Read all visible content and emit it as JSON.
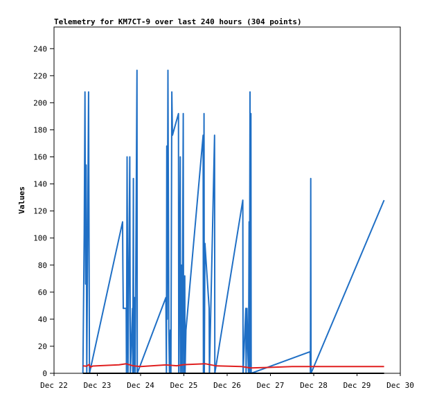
{
  "chart_data": {
    "type": "line",
    "title": "Telemetry for KM7CT-9 over last 240 hours (304 points)",
    "xlabel": "",
    "ylabel": "Values",
    "ylim": [
      0,
      256
    ],
    "xlim": [
      "Dec 22",
      "Dec 30"
    ],
    "x_ticks": [
      "Dec 22",
      "Dec 23",
      "Dec 24",
      "Dec 25",
      "Dec 26",
      "Dec 27",
      "Dec 28",
      "Dec 29",
      "Dec 30"
    ],
    "y_ticks": [
      0,
      20,
      40,
      60,
      80,
      100,
      120,
      140,
      160,
      180,
      200,
      220,
      240
    ],
    "grid": false,
    "legend": "none",
    "colors": {
      "blue": "#1f6fc5",
      "red": "#e01f1f",
      "black": "#000000"
    },
    "series": [
      {
        "color": "blue",
        "points": [
          [
            "Dec 22 16:00",
            0
          ],
          [
            "Dec 22 16:45",
            104
          ],
          [
            "Dec 22 17:10",
            208
          ],
          [
            "Dec 22 17:30",
            66
          ],
          [
            "Dec 22 17:50",
            154
          ],
          [
            "Dec 22 18:10",
            0
          ],
          [
            "Dec 22 19:10",
            208
          ],
          [
            "Dec 22 19:40",
            0
          ],
          [
            "Dec 23 14:00",
            112
          ],
          [
            "Dec 23 14:10",
            80
          ],
          [
            "Dec 23 14:25",
            48
          ],
          [
            "Dec 23 16:00",
            48
          ],
          [
            "Dec 23 16:10",
            0
          ],
          [
            "Dec 23 16:30",
            160
          ],
          [
            "Dec 23 17:00",
            0
          ],
          [
            "Dec 23 18:00",
            160
          ],
          [
            "Dec 23 18:20",
            0
          ],
          [
            "Dec 23 19:30",
            48
          ],
          [
            "Dec 23 19:40",
            0
          ],
          [
            "Dec 23 20:00",
            144
          ],
          [
            "Dec 23 20:10",
            0
          ],
          [
            "Dec 23 20:40",
            56
          ],
          [
            "Dec 23 21:00",
            0
          ],
          [
            "Dec 23 22:00",
            224
          ],
          [
            "Dec 23 22:10",
            0
          ],
          [
            "Dec 24 14:00",
            56
          ],
          [
            "Dec 24 14:20",
            0
          ],
          [
            "Dec 24 14:30",
            168
          ],
          [
            "Dec 24 14:45",
            40
          ],
          [
            "Dec 24 15:10",
            224
          ],
          [
            "Dec 24 15:40",
            32
          ],
          [
            "Dec 24 16:00",
            0
          ],
          [
            "Dec 24 16:30",
            32
          ],
          [
            "Dec 24 16:50",
            0
          ],
          [
            "Dec 24 17:20",
            208
          ],
          [
            "Dec 24 17:40",
            176
          ],
          [
            "Dec 24 21:00",
            192
          ],
          [
            "Dec 24 21:10",
            0
          ],
          [
            "Dec 24 22:00",
            160
          ],
          [
            "Dec 24 22:10",
            0
          ],
          [
            "Dec 24 22:40",
            80
          ],
          [
            "Dec 24 23:00",
            0
          ],
          [
            "Dec 24 23:40",
            192
          ],
          [
            "Dec 24 23:50",
            0
          ],
          [
            "Dec 25 00:30",
            72
          ],
          [
            "Dec 25 00:40",
            0
          ],
          [
            "Dec 25 01:10",
            32
          ],
          [
            "Dec 25 10:40",
            176
          ],
          [
            "Dec 25 10:50",
            0
          ],
          [
            "Dec 25 11:10",
            192
          ],
          [
            "Dec 25 11:20",
            0
          ],
          [
            "Dec 25 11:40",
            96
          ],
          [
            "Dec 25 14:00",
            48
          ],
          [
            "Dec 25 14:10",
            0
          ],
          [
            "Dec 25 17:00",
            176
          ],
          [
            "Dec 25 17:10",
            0
          ],
          [
            "Dec 26 08:40",
            128
          ],
          [
            "Dec 26 08:50",
            0
          ],
          [
            "Dec 26 10:20",
            48
          ],
          [
            "Dec 26 10:30",
            0
          ],
          [
            "Dec 26 11:00",
            48
          ],
          [
            "Dec 26 11:30",
            16
          ],
          [
            "Dec 26 11:50",
            0
          ],
          [
            "Dec 26 12:10",
            112
          ],
          [
            "Dec 26 12:20",
            0
          ],
          [
            "Dec 26 12:40",
            208
          ],
          [
            "Dec 26 12:50",
            0
          ],
          [
            "Dec 26 13:10",
            192
          ],
          [
            "Dec 26 13:20",
            0
          ],
          [
            "Dec 27 22:00",
            16
          ],
          [
            "Dec 27 22:10",
            0
          ],
          [
            "Dec 27 22:20",
            144
          ],
          [
            "Dec 27 22:30",
            0
          ],
          [
            "Dec 29 15:00",
            128
          ]
        ]
      },
      {
        "color": "red",
        "points": [
          [
            "Dec 22 16:00",
            5.5
          ],
          [
            "Dec 22 18:00",
            5.2
          ],
          [
            "Dec 22 19:30",
            6.5
          ],
          [
            "Dec 22 20:10",
            4.5
          ],
          [
            "Dec 22 21:30",
            5.4
          ],
          [
            "Dec 23 12:00",
            6.3
          ],
          [
            "Dec 23 16:00",
            7.0
          ],
          [
            "Dec 23 20:00",
            5.5
          ],
          [
            "Dec 24 00:00",
            5.0
          ],
          [
            "Dec 24 14:00",
            6.2
          ],
          [
            "Dec 24 20:00",
            5.6
          ],
          [
            "Dec 25 00:00",
            6.4
          ],
          [
            "Dec 25 12:00",
            7.0
          ],
          [
            "Dec 25 18:00",
            5.5
          ],
          [
            "Dec 26 08:00",
            5.0
          ],
          [
            "Dec 26 13:00",
            4.0
          ],
          [
            "Dec 26 20:00",
            4.2
          ],
          [
            "Dec 27 12:00",
            5.0
          ],
          [
            "Dec 28 00:00",
            5.0
          ],
          [
            "Dec 29 15:00",
            5.0
          ]
        ]
      },
      {
        "color": "black",
        "points": [
          [
            "Dec 22 16:00",
            0
          ],
          [
            "Dec 29 15:00",
            0
          ]
        ]
      }
    ]
  }
}
